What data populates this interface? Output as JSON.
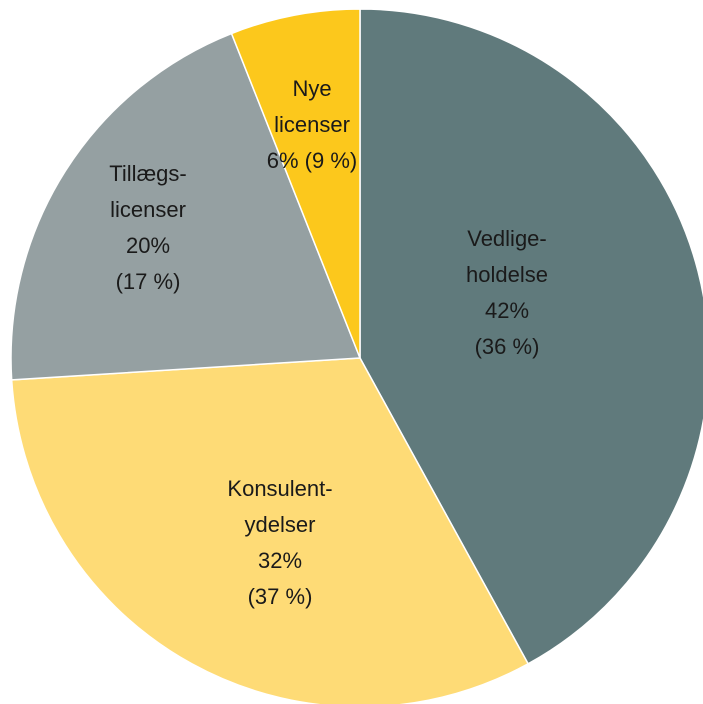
{
  "chart_data": {
    "type": "pie",
    "categories": [
      [
        "Vedlige-",
        "holdelse"
      ],
      [
        "Konsulent-",
        "ydelser"
      ],
      [
        "Tillægs-",
        "licenser"
      ],
      [
        "Nye",
        "licenser"
      ]
    ],
    "values": [
      42,
      32,
      20,
      6
    ],
    "value_labels": [
      "42%",
      "32%",
      "20%",
      "6%"
    ],
    "previous_labels": [
      "(36 %)",
      "(37 %)",
      "(17 %)",
      "(9 %)"
    ],
    "colors": [
      "#607a7c",
      "#fedb76",
      "#95a0a2",
      "#fcc81c"
    ]
  }
}
